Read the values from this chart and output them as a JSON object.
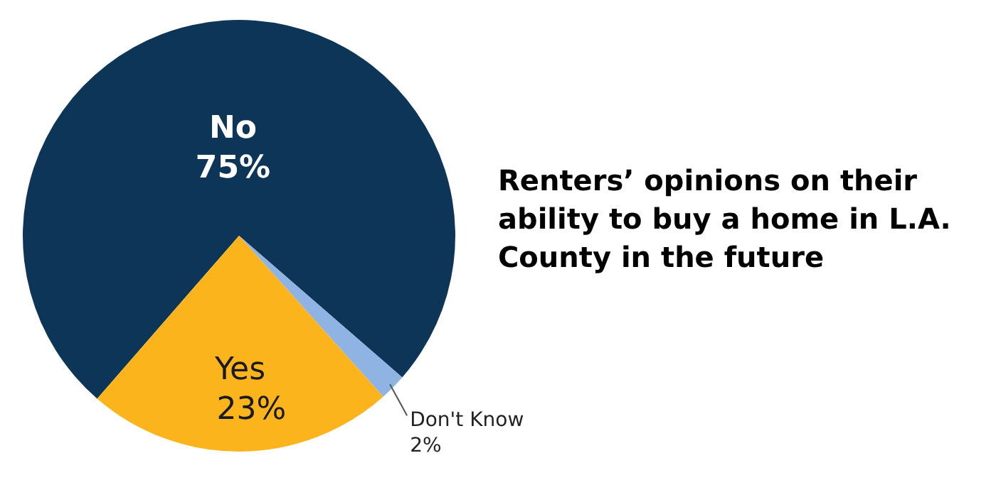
{
  "chart_data": {
    "type": "pie",
    "title": "Renters’ opinions on their ability to buy a home in L.A. County in the future",
    "categories": [
      "No",
      "Don't Know",
      "Yes"
    ],
    "values": [
      75,
      2,
      23
    ],
    "value_labels": [
      "75%",
      "2%",
      "23%"
    ],
    "colors": [
      "#0d3557",
      "#8fb4e3",
      "#fbb41c"
    ],
    "legend": false
  }
}
